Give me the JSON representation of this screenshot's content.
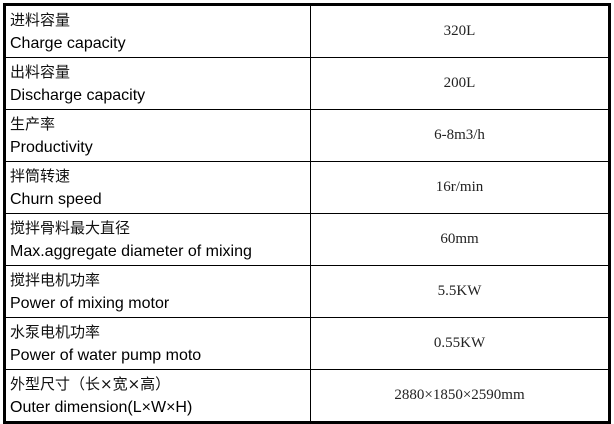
{
  "rows": [
    {
      "zh": "进料容量",
      "en": "Charge capacity",
      "value": "320L"
    },
    {
      "zh": "出料容量",
      "en": "Discharge capacity",
      "value": "200L"
    },
    {
      "zh": "生产率",
      "en": "Productivity",
      "value": "6-8m3/h"
    },
    {
      "zh": "拌筒转速",
      "en": "Churn speed",
      "value": "16r/min"
    },
    {
      "zh": "搅拌骨料最大直径",
      "en": "Max.aggregate diameter of mixing",
      "value": "60mm"
    },
    {
      "zh": "搅拌电机功率",
      "en": "Power of mixing motor",
      "value": "5.5KW"
    },
    {
      "zh": "水泵电机功率",
      "en": "Power of water pump moto",
      "value": "0.55KW"
    },
    {
      "zh": "外型尺寸（长×宽×高）",
      "en": "Outer dimension(L×W×H)",
      "value": "2880×1850×2590mm"
    }
  ]
}
